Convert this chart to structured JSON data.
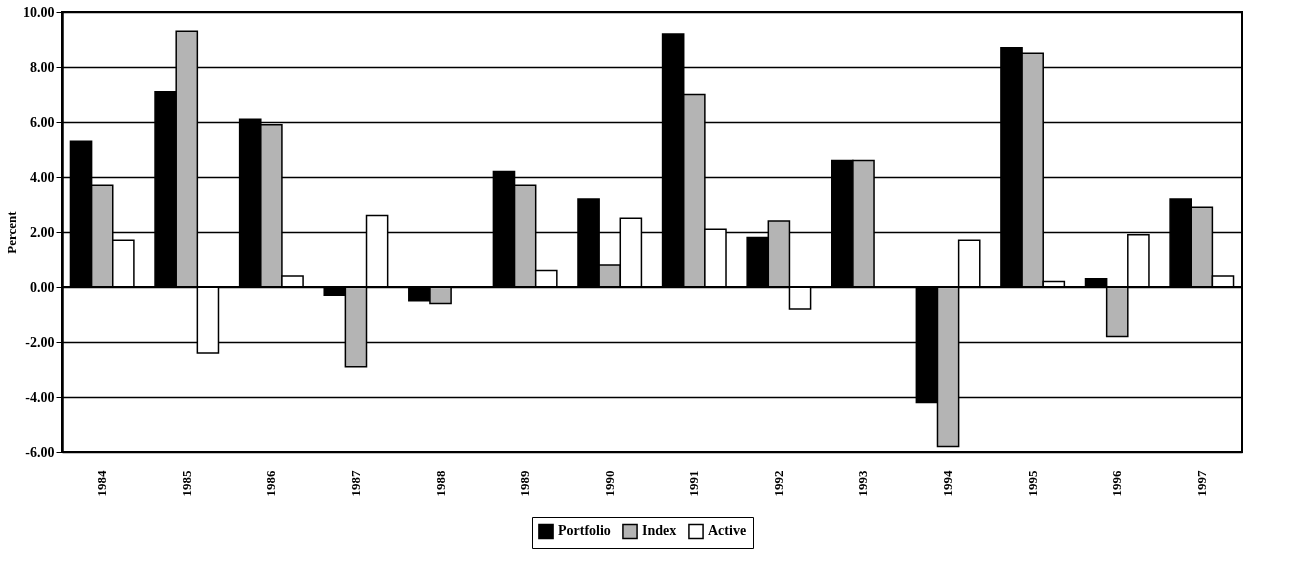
{
  "chart_data": {
    "type": "bar",
    "ylabel": "Percent",
    "categories": [
      "1984",
      "1985",
      "1986",
      "1987",
      "1988",
      "1989",
      "1990",
      "1991",
      "1992",
      "1993",
      "1994",
      "1995",
      "1996",
      "1997"
    ],
    "series": [
      {
        "name": "Portfolio",
        "color": "#000000",
        "values": [
          5.3,
          7.1,
          6.1,
          -0.3,
          -0.5,
          4.2,
          3.2,
          9.2,
          1.8,
          4.6,
          -4.2,
          8.7,
          0.3,
          3.2
        ]
      },
      {
        "name": "Index",
        "color": "#b4b4b4",
        "values": [
          3.7,
          9.3,
          5.9,
          -2.9,
          -0.6,
          3.7,
          0.8,
          7.0,
          2.4,
          4.6,
          -5.8,
          8.5,
          -1.8,
          2.9
        ]
      },
      {
        "name": "Active",
        "color": "#ffffff",
        "values": [
          1.7,
          -2.4,
          0.4,
          2.6,
          null,
          0.6,
          2.5,
          2.1,
          -0.8,
          null,
          1.7,
          0.2,
          1.9,
          0.4
        ]
      }
    ],
    "ylim": [
      -6,
      10
    ],
    "yticks": [
      {
        "value": -6,
        "label": "-6.00"
      },
      {
        "value": -4,
        "label": "-4.00"
      },
      {
        "value": -2,
        "label": "-2.00"
      },
      {
        "value": 0,
        "label": "0.00"
      },
      {
        "value": 2,
        "label": "2.00"
      },
      {
        "value": 4,
        "label": "4.00"
      },
      {
        "value": 6,
        "label": "6.00"
      },
      {
        "value": 8,
        "label": "8.00"
      },
      {
        "value": 10,
        "label": "10.00"
      }
    ],
    "grid": "y",
    "legend": "bottom"
  }
}
